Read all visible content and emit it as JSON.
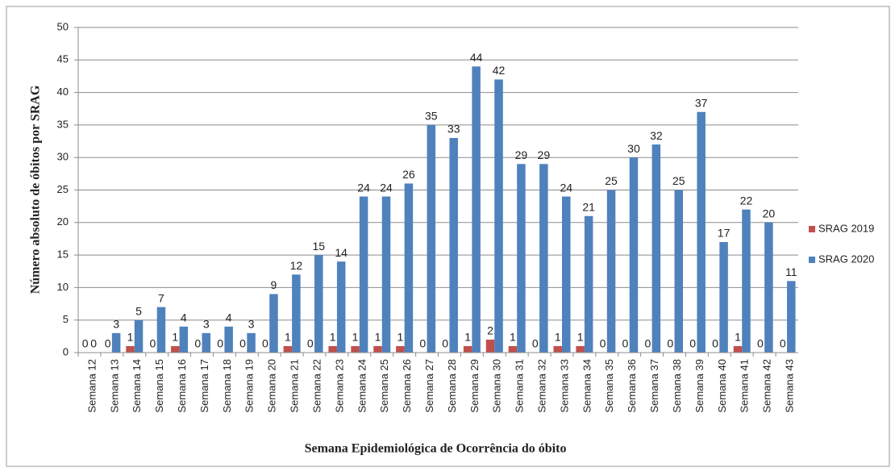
{
  "chart_data": {
    "type": "bar",
    "x_label": "Semana Epidemiológica de Ocorrência do óbito",
    "y_label": "Número absoluto de óbitos por SRAG",
    "categories": [
      "Semana 12",
      "Semana 13",
      "Semana 14",
      "Semana 15",
      "Semana 16",
      "Semana 17",
      "Semana 18",
      "Semana 19",
      "Semana 20",
      "Semana 21",
      "Semana 22",
      "Semana 23",
      "Semana 24",
      "Semana 25",
      "Semana 26",
      "Semana 27",
      "Semana 28",
      "Semana 29",
      "Semana 30",
      "Semana 31",
      "Semana 32",
      "Semana 33",
      "Semana 34",
      "Semana 35",
      "Semana 36",
      "Semana 37",
      "Semana 38",
      "Semana 39",
      "Semana 40",
      "Semana 41",
      "Semana 42",
      "Semana 43"
    ],
    "series": [
      {
        "name": "SRAG 2019",
        "color": "#c0504d",
        "values": [
          0,
          0,
          1,
          0,
          1,
          0,
          0,
          0,
          0,
          1,
          0,
          1,
          1,
          1,
          1,
          0,
          0,
          1,
          2,
          1,
          0,
          1,
          1,
          0,
          0,
          0,
          0,
          0,
          0,
          1,
          0,
          0
        ]
      },
      {
        "name": "SRAG 2020",
        "color": "#4f81bd",
        "values": [
          0,
          3,
          5,
          7,
          4,
          3,
          4,
          3,
          9,
          12,
          15,
          14,
          24,
          24,
          26,
          35,
          33,
          44,
          42,
          29,
          29,
          24,
          21,
          25,
          30,
          32,
          25,
          37,
          17,
          22,
          20,
          11
        ]
      }
    ],
    "ylim": [
      0,
      50
    ],
    "yticks": [
      0,
      5,
      10,
      15,
      20,
      25,
      30,
      35,
      40,
      45,
      50
    ],
    "grid": true,
    "legend": "right"
  }
}
